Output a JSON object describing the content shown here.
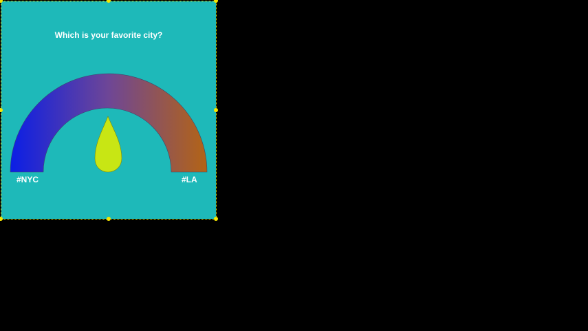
{
  "poll": {
    "question": "Which is your favorite city?",
    "left_option": "#NYC",
    "right_option": "#LA",
    "needle_value": 0.5
  },
  "colors": {
    "background": "#000000",
    "card": "#1eb9b9",
    "gauge_start": "#0a1ee6",
    "gauge_middle": "#6e4696",
    "gauge_end": "#b46414",
    "needle": "#c8e614",
    "selection_handle": "#f5e600"
  },
  "icons": {
    "needle": "teardrop-needle-icon"
  }
}
